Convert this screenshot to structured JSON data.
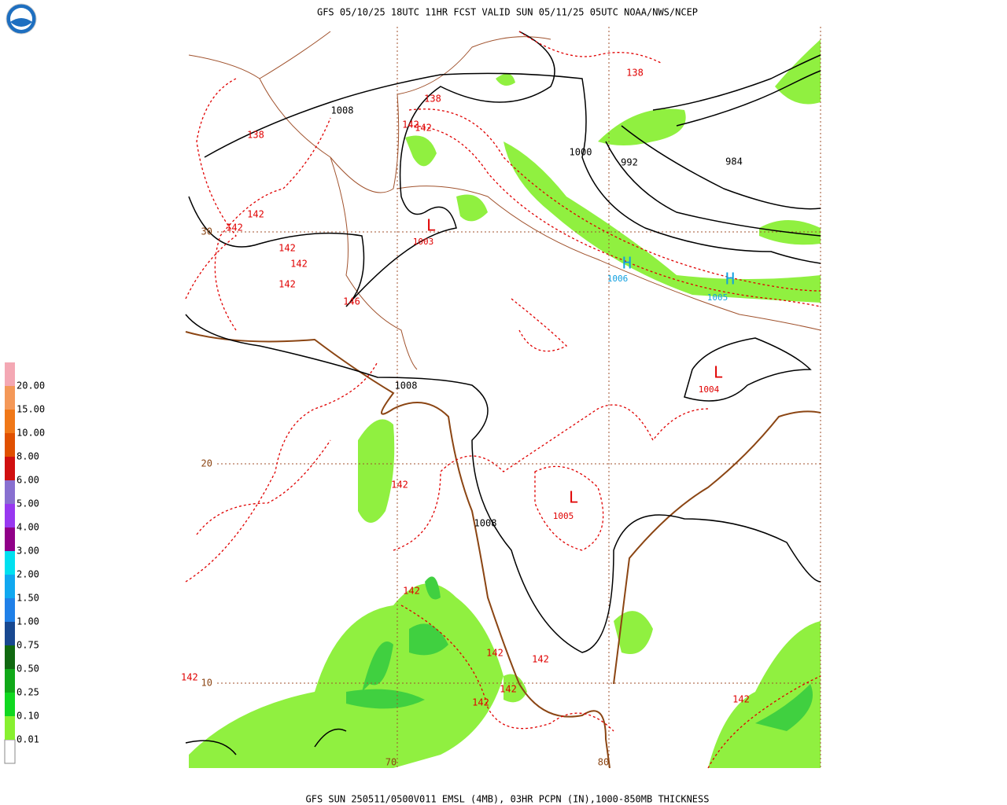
{
  "header": {
    "title": "GFS 05/10/25 18UTC 11HR FCST VALID SUN 05/11/25 05UTC NOAA/NWS/NCEP"
  },
  "footer": {
    "caption": "GFS SUN 250511/0500V011 EMSL (4MB), 03HR PCPN (IN),1000-850MB THICKNESS"
  },
  "legend": {
    "bins": [
      {
        "label": "20.00",
        "color": "#f4a8b4"
      },
      {
        "label": "15.00",
        "color": "#f49858"
      },
      {
        "label": "10.00",
        "color": "#f07818"
      },
      {
        "label": "8.00",
        "color": "#e05000"
      },
      {
        "label": "6.00",
        "color": "#d01010"
      },
      {
        "label": "5.00",
        "color": "#8870d0"
      },
      {
        "label": "4.00",
        "color": "#9838f0"
      },
      {
        "label": "3.00",
        "color": "#900088"
      },
      {
        "label": "2.00",
        "color": "#00e0f0"
      },
      {
        "label": "1.50",
        "color": "#10a8f0"
      },
      {
        "label": "1.00",
        "color": "#2080e8"
      },
      {
        "label": "0.75",
        "color": "#184890"
      },
      {
        "label": "0.50",
        "color": "#106810"
      },
      {
        "label": "0.25",
        "color": "#10a818"
      },
      {
        "label": "0.10",
        "color": "#10d820"
      },
      {
        "label": "0.01",
        "color": "#88f030"
      }
    ]
  },
  "map": {
    "isobar_labels": [
      "1008",
      "1000",
      "992",
      "984",
      "1008",
      "1008"
    ],
    "thickness_labels": [
      "138",
      "138",
      "142",
      "142",
      "138",
      "142",
      "142",
      "142",
      "142",
      "142",
      "146",
      "142",
      "142",
      "142",
      "142",
      "142",
      "142",
      "142",
      "142"
    ],
    "centers": [
      {
        "letter": "L",
        "pressure": "1003"
      },
      {
        "letter": "H",
        "pressure": "1006"
      },
      {
        "letter": "H",
        "pressure": "1005"
      },
      {
        "letter": "L",
        "pressure": "1004"
      },
      {
        "letter": "L",
        "pressure": "1005"
      }
    ],
    "grid_labels": [
      "30",
      "20",
      "10",
      "70",
      "80"
    ]
  }
}
